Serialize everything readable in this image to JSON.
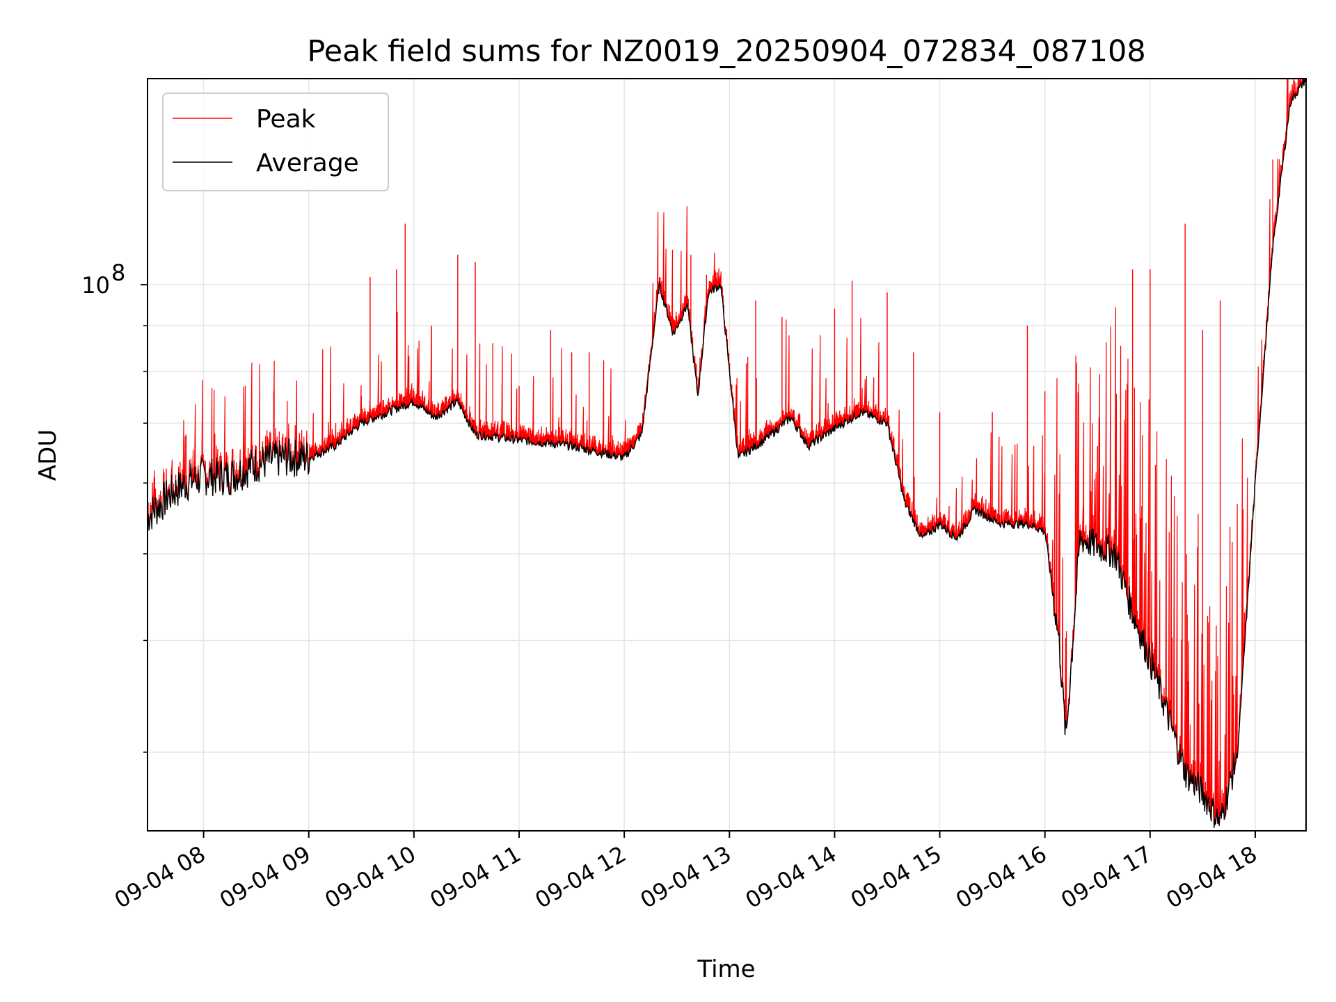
{
  "chart_data": {
    "type": "line",
    "title": "Peak field sums for NZ0019_20250904_072834_087108",
    "xlabel": "Time",
    "ylabel": "ADU",
    "y_scale": "log",
    "ylim": [
      24500000,
      170000000
    ],
    "xlim": [
      "2025-09-04T07:28",
      "2025-09-04T18:29"
    ],
    "x_ticks": [
      "09-04 08",
      "09-04 09",
      "09-04 10",
      "09-04 11",
      "09-04 12",
      "09-04 13",
      "09-04 14",
      "09-04 15",
      "09-04 16",
      "09-04 17",
      "09-04 18"
    ],
    "y_tick_major": {
      "value": 100000000,
      "label_base": "10",
      "label_exp": "8"
    },
    "y_minor_ticks": [
      30000000,
      40000000,
      50000000,
      60000000,
      70000000,
      80000000,
      90000000
    ],
    "grid": true,
    "legend_position": "upper-left",
    "series": [
      {
        "name": "Average",
        "color": "#000000",
        "points": [
          [
            "2025-09-04T07:28",
            55000000
          ],
          [
            "2025-09-04T07:40",
            58000000
          ],
          [
            "2025-09-04T07:50",
            60000000
          ],
          [
            "2025-09-04T08:00",
            61000000
          ],
          [
            "2025-09-04T08:15",
            61000000
          ],
          [
            "2025-09-04T08:30",
            63000000
          ],
          [
            "2025-09-04T08:45",
            64000000
          ],
          [
            "2025-09-04T09:00",
            64000000
          ],
          [
            "2025-09-04T09:15",
            66000000
          ],
          [
            "2025-09-04T09:30",
            70000000
          ],
          [
            "2025-09-04T09:45",
            72000000
          ],
          [
            "2025-09-04T10:00",
            74000000
          ],
          [
            "2025-09-04T10:12",
            71000000
          ],
          [
            "2025-09-04T10:25",
            74000000
          ],
          [
            "2025-09-04T10:35",
            68000000
          ],
          [
            "2025-09-04T11:00",
            67000000
          ],
          [
            "2025-09-04T11:30",
            66000000
          ],
          [
            "2025-09-04T12:00",
            64000000
          ],
          [
            "2025-09-04T12:10",
            68000000
          ],
          [
            "2025-09-04T12:20",
            100000000
          ],
          [
            "2025-09-04T12:28",
            88000000
          ],
          [
            "2025-09-04T12:36",
            95000000
          ],
          [
            "2025-09-04T12:42",
            75000000
          ],
          [
            "2025-09-04T12:48",
            98000000
          ],
          [
            "2025-09-04T12:55",
            100000000
          ],
          [
            "2025-09-04T13:05",
            64000000
          ],
          [
            "2025-09-04T13:20",
            67000000
          ],
          [
            "2025-09-04T13:35",
            71000000
          ],
          [
            "2025-09-04T13:45",
            66000000
          ],
          [
            "2025-09-04T14:00",
            69000000
          ],
          [
            "2025-09-04T14:15",
            72000000
          ],
          [
            "2025-09-04T14:30",
            70000000
          ],
          [
            "2025-09-04T14:40",
            57000000
          ],
          [
            "2025-09-04T14:50",
            52000000
          ],
          [
            "2025-09-04T15:00",
            54000000
          ],
          [
            "2025-09-04T15:10",
            52000000
          ],
          [
            "2025-09-04T15:20",
            56000000
          ],
          [
            "2025-09-04T15:35",
            54000000
          ],
          [
            "2025-09-04T15:50",
            54000000
          ],
          [
            "2025-09-04T16:00",
            53000000
          ],
          [
            "2025-09-04T16:08",
            40000000
          ],
          [
            "2025-09-04T16:12",
            31000000
          ],
          [
            "2025-09-04T16:20",
            52000000
          ],
          [
            "2025-09-04T16:40",
            50000000
          ],
          [
            "2025-09-04T16:50",
            43000000
          ],
          [
            "2025-09-04T17:00",
            38000000
          ],
          [
            "2025-09-04T17:10",
            33000000
          ],
          [
            "2025-09-04T17:20",
            28500000
          ],
          [
            "2025-09-04T17:30",
            27000000
          ],
          [
            "2025-09-04T17:40",
            25000000
          ],
          [
            "2025-09-04T17:50",
            30000000
          ],
          [
            "2025-09-04T18:00",
            60000000
          ],
          [
            "2025-09-04T18:10",
            110000000
          ],
          [
            "2025-09-04T18:20",
            160000000
          ],
          [
            "2025-09-04T18:29",
            170000000
          ]
        ]
      },
      {
        "name": "Peak",
        "color": "#ff0000",
        "spikes": [
          [
            "2025-09-04T07:50",
            68000000
          ],
          [
            "2025-09-04T08:30",
            66000000
          ],
          [
            "2025-09-04T08:40",
            76000000
          ],
          [
            "2025-09-04T09:30",
            75000000
          ],
          [
            "2025-09-04T09:35",
            102000000
          ],
          [
            "2025-09-04T09:50",
            104000000
          ],
          [
            "2025-09-04T09:55",
            117000000
          ],
          [
            "2025-09-04T10:10",
            90000000
          ],
          [
            "2025-09-04T10:25",
            108000000
          ],
          [
            "2025-09-04T10:35",
            106000000
          ],
          [
            "2025-09-04T10:45",
            86000000
          ],
          [
            "2025-09-04T11:00",
            77000000
          ],
          [
            "2025-09-04T11:18",
            89000000
          ],
          [
            "2025-09-04T11:30",
            84000000
          ],
          [
            "2025-09-04T11:40",
            84000000
          ],
          [
            "2025-09-04T12:38",
            108000000
          ],
          [
            "2025-09-04T13:15",
            96000000
          ],
          [
            "2025-09-04T13:30",
            92000000
          ],
          [
            "2025-09-04T14:00",
            94000000
          ],
          [
            "2025-09-04T14:10",
            101000000
          ],
          [
            "2025-09-04T14:30",
            98000000
          ],
          [
            "2025-09-04T14:45",
            84000000
          ],
          [
            "2025-09-04T15:00",
            72000000
          ],
          [
            "2025-09-04T15:30",
            72000000
          ],
          [
            "2025-09-04T15:50",
            90000000
          ],
          [
            "2025-09-04T16:00",
            76000000
          ],
          [
            "2025-09-04T16:30",
            66000000
          ],
          [
            "2025-09-04T16:50",
            104000000
          ],
          [
            "2025-09-04T17:00",
            104000000
          ],
          [
            "2025-09-04T17:20",
            117000000
          ],
          [
            "2025-09-04T17:30",
            89000000
          ],
          [
            "2025-09-04T17:40",
            96000000
          ],
          [
            "2025-09-04T18:10",
            138000000
          ]
        ]
      }
    ]
  }
}
